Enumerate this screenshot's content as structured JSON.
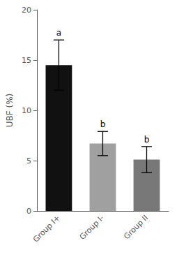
{
  "chart_data": {
    "type": "bar",
    "categories": [
      "Group I+",
      "Group I-",
      "Group II"
    ],
    "values": [
      14.5,
      6.7,
      5.1
    ],
    "errors": [
      2.5,
      1.2,
      1.3
    ],
    "colors": [
      "#111111",
      "#a0a0a0",
      "#787878"
    ],
    "letters": [
      "a",
      "b",
      "b"
    ],
    "ylabel": "UBF (%)",
    "ylim": [
      0,
      20
    ],
    "yticks": [
      0,
      5,
      10,
      15,
      20
    ],
    "grid": false
  }
}
